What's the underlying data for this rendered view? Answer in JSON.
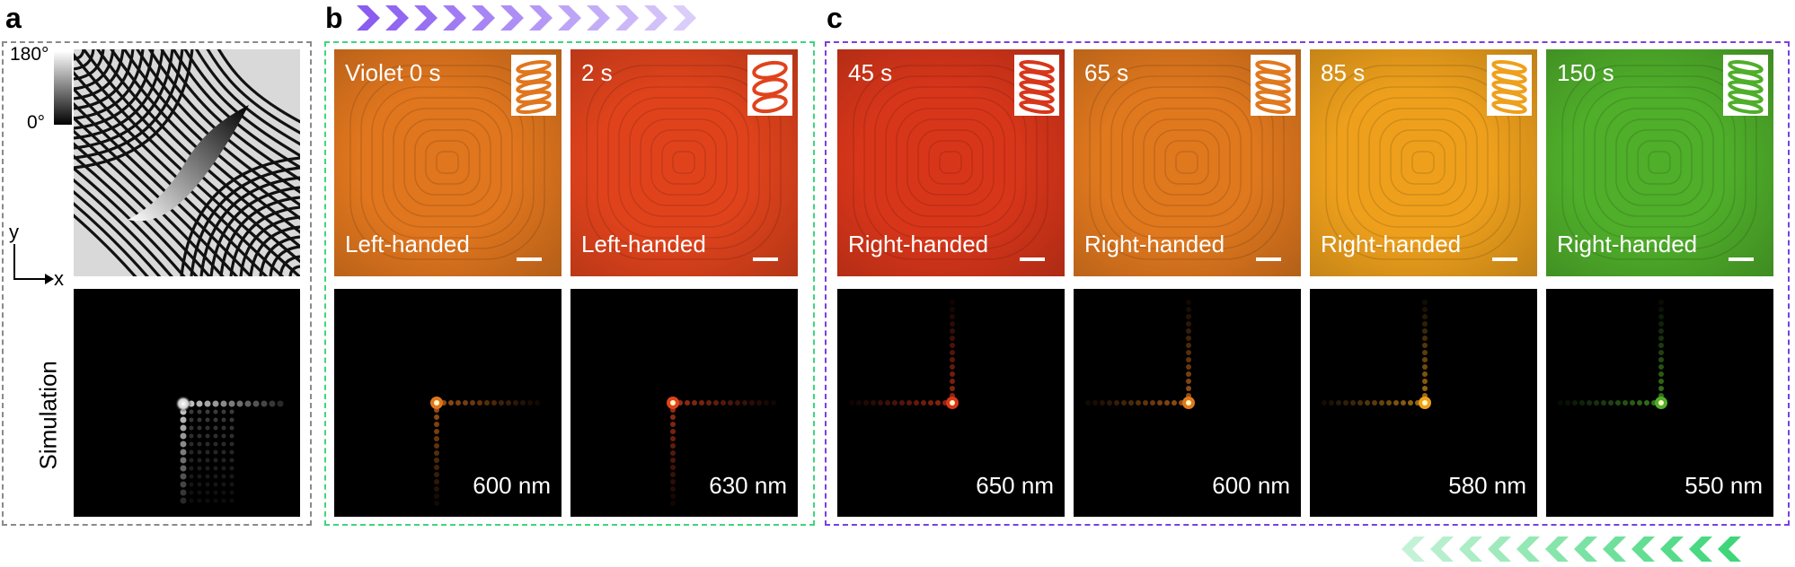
{
  "panels": {
    "a": {
      "letter": "a",
      "colorbar_max": "180°",
      "colorbar_min": "0°",
      "axis_y": "y",
      "axis_x": "x",
      "simulation_label": "Simulation",
      "frame_color": "#8a8a8a"
    },
    "b": {
      "letter": "b",
      "frame_color": "#3fd67a",
      "arrow_color": "#8a5cf0",
      "items": [
        {
          "time": "Violet 0 s",
          "handedness": "Left-handed",
          "wavelength": "600 nm",
          "color": "#e0761e"
        },
        {
          "time": "2 s",
          "handedness": "Left-handed",
          "wavelength": "630 nm",
          "color": "#e0431c"
        }
      ]
    },
    "c": {
      "letter": "c",
      "frame_color": "#7b3fe0",
      "arrow_color": "#3fd67a",
      "items": [
        {
          "time": "45 s",
          "handedness": "Right-handed",
          "wavelength": "650 nm",
          "color": "#d8361a"
        },
        {
          "time": "65 s",
          "handedness": "Right-handed",
          "wavelength": "600 nm",
          "color": "#e0781e"
        },
        {
          "time": "85 s",
          "handedness": "Right-handed",
          "wavelength": "580 nm",
          "color": "#eea01c"
        },
        {
          "time": "150 s",
          "handedness": "Right-handed",
          "wavelength": "550 nm",
          "color": "#4fae2a"
        }
      ]
    }
  }
}
